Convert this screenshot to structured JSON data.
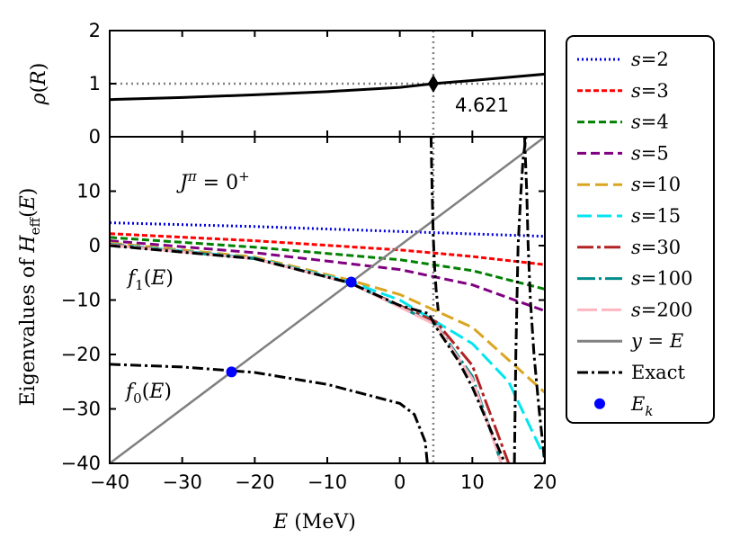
{
  "chart_data": [
    {
      "type": "line",
      "panel": "top",
      "ylabel": "ρ(R)",
      "xlim": [
        -40,
        20
      ],
      "ylim": [
        0,
        2
      ],
      "yticks": [
        0,
        1,
        2
      ],
      "xticks": [
        -40,
        -30,
        -20,
        -10,
        0,
        10,
        20
      ],
      "series": [
        {
          "name": "rho",
          "x": [
            -40,
            -30,
            -20,
            -10,
            0,
            4.621,
            10,
            20
          ],
          "y": [
            0.7,
            0.74,
            0.79,
            0.85,
            0.93,
            1.0,
            1.06,
            1.18
          ]
        }
      ],
      "reference_lines": {
        "hline_y": 1,
        "vline_x": 4.621
      },
      "marker": {
        "x": 4.621,
        "y": 1.0,
        "symbol": "diamond"
      },
      "annotation": "4.621"
    },
    {
      "type": "line",
      "panel": "bottom",
      "xlabel": "E (MeV)",
      "ylabel": "Eigenvalues of H_eff(E)",
      "xlim": [
        -40,
        20
      ],
      "ylim": [
        -40,
        20
      ],
      "xticks": [
        -40,
        -30,
        -20,
        -10,
        0,
        10,
        20
      ],
      "yticks": [
        -40,
        -30,
        -20,
        -10,
        0,
        10
      ],
      "annotations": [
        "J^π = 0^+",
        "f_1(E)",
        "f_0(E)"
      ],
      "vline_x": 4.621,
      "series": [
        {
          "name": "s=2",
          "x": [
            -40,
            -20,
            0,
            20
          ],
          "y": [
            4.2,
            3.5,
            2.6,
            1.7
          ]
        },
        {
          "name": "s=3",
          "x": [
            -40,
            -20,
            0,
            10,
            20
          ],
          "y": [
            2.2,
            0.9,
            -0.8,
            -2.0,
            -3.5
          ]
        },
        {
          "name": "s=4",
          "x": [
            -40,
            -20,
            0,
            10,
            20
          ],
          "y": [
            1.5,
            -0.3,
            -2.6,
            -4.6,
            -8.0
          ]
        },
        {
          "name": "s=5",
          "x": [
            -40,
            -20,
            0,
            10,
            20
          ],
          "y": [
            0.9,
            -1.3,
            -4.4,
            -7.2,
            -12.0
          ]
        },
        {
          "name": "s=10",
          "x": [
            -40,
            -20,
            -7,
            0,
            10,
            20
          ],
          "y": [
            0.5,
            -2.1,
            -6.3,
            -9.0,
            -15.0,
            -27.0
          ]
        },
        {
          "name": "s=15",
          "x": [
            -40,
            -20,
            -7,
            0,
            10,
            15,
            20
          ],
          "y": [
            0.3,
            -2.3,
            -6.6,
            -10.0,
            -18.0,
            -25.0,
            -39.0
          ]
        },
        {
          "name": "s=30",
          "x": [
            -40,
            -20,
            -7,
            0,
            5,
            10,
            15
          ],
          "y": [
            0.2,
            -2.4,
            -6.8,
            -11.0,
            -14.0,
            -22.0,
            -40.0
          ]
        },
        {
          "name": "s=100",
          "x": [
            -40,
            -20,
            -7,
            0,
            5,
            10,
            14
          ],
          "y": [
            0.1,
            -2.4,
            -6.8,
            -11.2,
            -14.5,
            -24.0,
            -40.0
          ]
        },
        {
          "name": "s=200",
          "x": [
            -40,
            -20,
            -7,
            0,
            5,
            10,
            14
          ],
          "y": [
            0.1,
            -2.4,
            -6.8,
            -11.3,
            -14.6,
            -24.5,
            -40.0
          ]
        },
        {
          "name": "y=E",
          "x": [
            -40,
            20
          ],
          "y": [
            -40,
            20
          ]
        },
        {
          "name": "Exact",
          "x": [
            -40,
            -20,
            -7,
            0,
            4,
            5,
            8,
            10,
            14.5
          ],
          "y": [
            0.0,
            -2.4,
            -6.8,
            -11.0,
            -12.5,
            -15.0,
            -21.0,
            -26.0,
            -40.0
          ]
        }
      ],
      "exact_extra_branches": [
        {
          "x": [
            -40,
            -30,
            -20,
            -10,
            0,
            2,
            3.5,
            3.8
          ],
          "y": [
            -21.8,
            -22.3,
            -23.3,
            -25.5,
            -29.0,
            -31.0,
            -36.0,
            -40.0
          ]
        },
        {
          "x": [
            4.3,
            4.45,
            4.6,
            4.8,
            5.0,
            5.3
          ],
          "y": [
            20.0,
            10.0,
            2.0,
            -4.0,
            -8.0,
            -12.0
          ]
        },
        {
          "x": [
            15.8,
            16.0,
            16.3,
            16.7,
            17.0,
            17.4
          ],
          "y": [
            -40.0,
            -20.0,
            0.0,
            10.0,
            16.0,
            20.0
          ]
        },
        {
          "x": [
            17.2,
            17.5,
            17.7,
            18.0,
            18.5,
            19.2,
            20.0
          ],
          "y": [
            20.0,
            10.0,
            0.0,
            -10.0,
            -20.0,
            -30.0,
            -40.0
          ]
        }
      ],
      "E_k": [
        {
          "x": -23.2,
          "y": -23.2
        },
        {
          "x": -6.7,
          "y": -6.7
        }
      ]
    }
  ],
  "legend": [
    {
      "label": "s=2",
      "color": "#0000e0",
      "dash": "2,3"
    },
    {
      "label": "s=3",
      "color": "#ff0000",
      "dash": "6,3"
    },
    {
      "label": "s=4",
      "color": "#008000",
      "dash": "8,4"
    },
    {
      "label": "s=5",
      "color": "#800080",
      "dash": "10,5"
    },
    {
      "label": "s=10",
      "color": "#daa520",
      "dash": "14,6"
    },
    {
      "label": "s=15",
      "color": "#00e5ee",
      "dash": "16,6"
    },
    {
      "label": "s=30",
      "color": "#b22222",
      "dash": "18,4,4,4"
    },
    {
      "label": "s=100",
      "color": "#008b8b",
      "dash": "20,4,3,4"
    },
    {
      "label": "s=200",
      "color": "#ffb6c1",
      "dash": "22,5"
    },
    {
      "label": "y = E",
      "color": "#808080",
      "dash": ""
    },
    {
      "label": "Exact",
      "color": "#000000",
      "dash": "12,4,3,4"
    },
    {
      "label": "E_k",
      "color": "#0000ff",
      "dash": "marker"
    }
  ],
  "colors": {
    "reference": "#808080",
    "marker": "#000000",
    "point": "#0000ff"
  }
}
